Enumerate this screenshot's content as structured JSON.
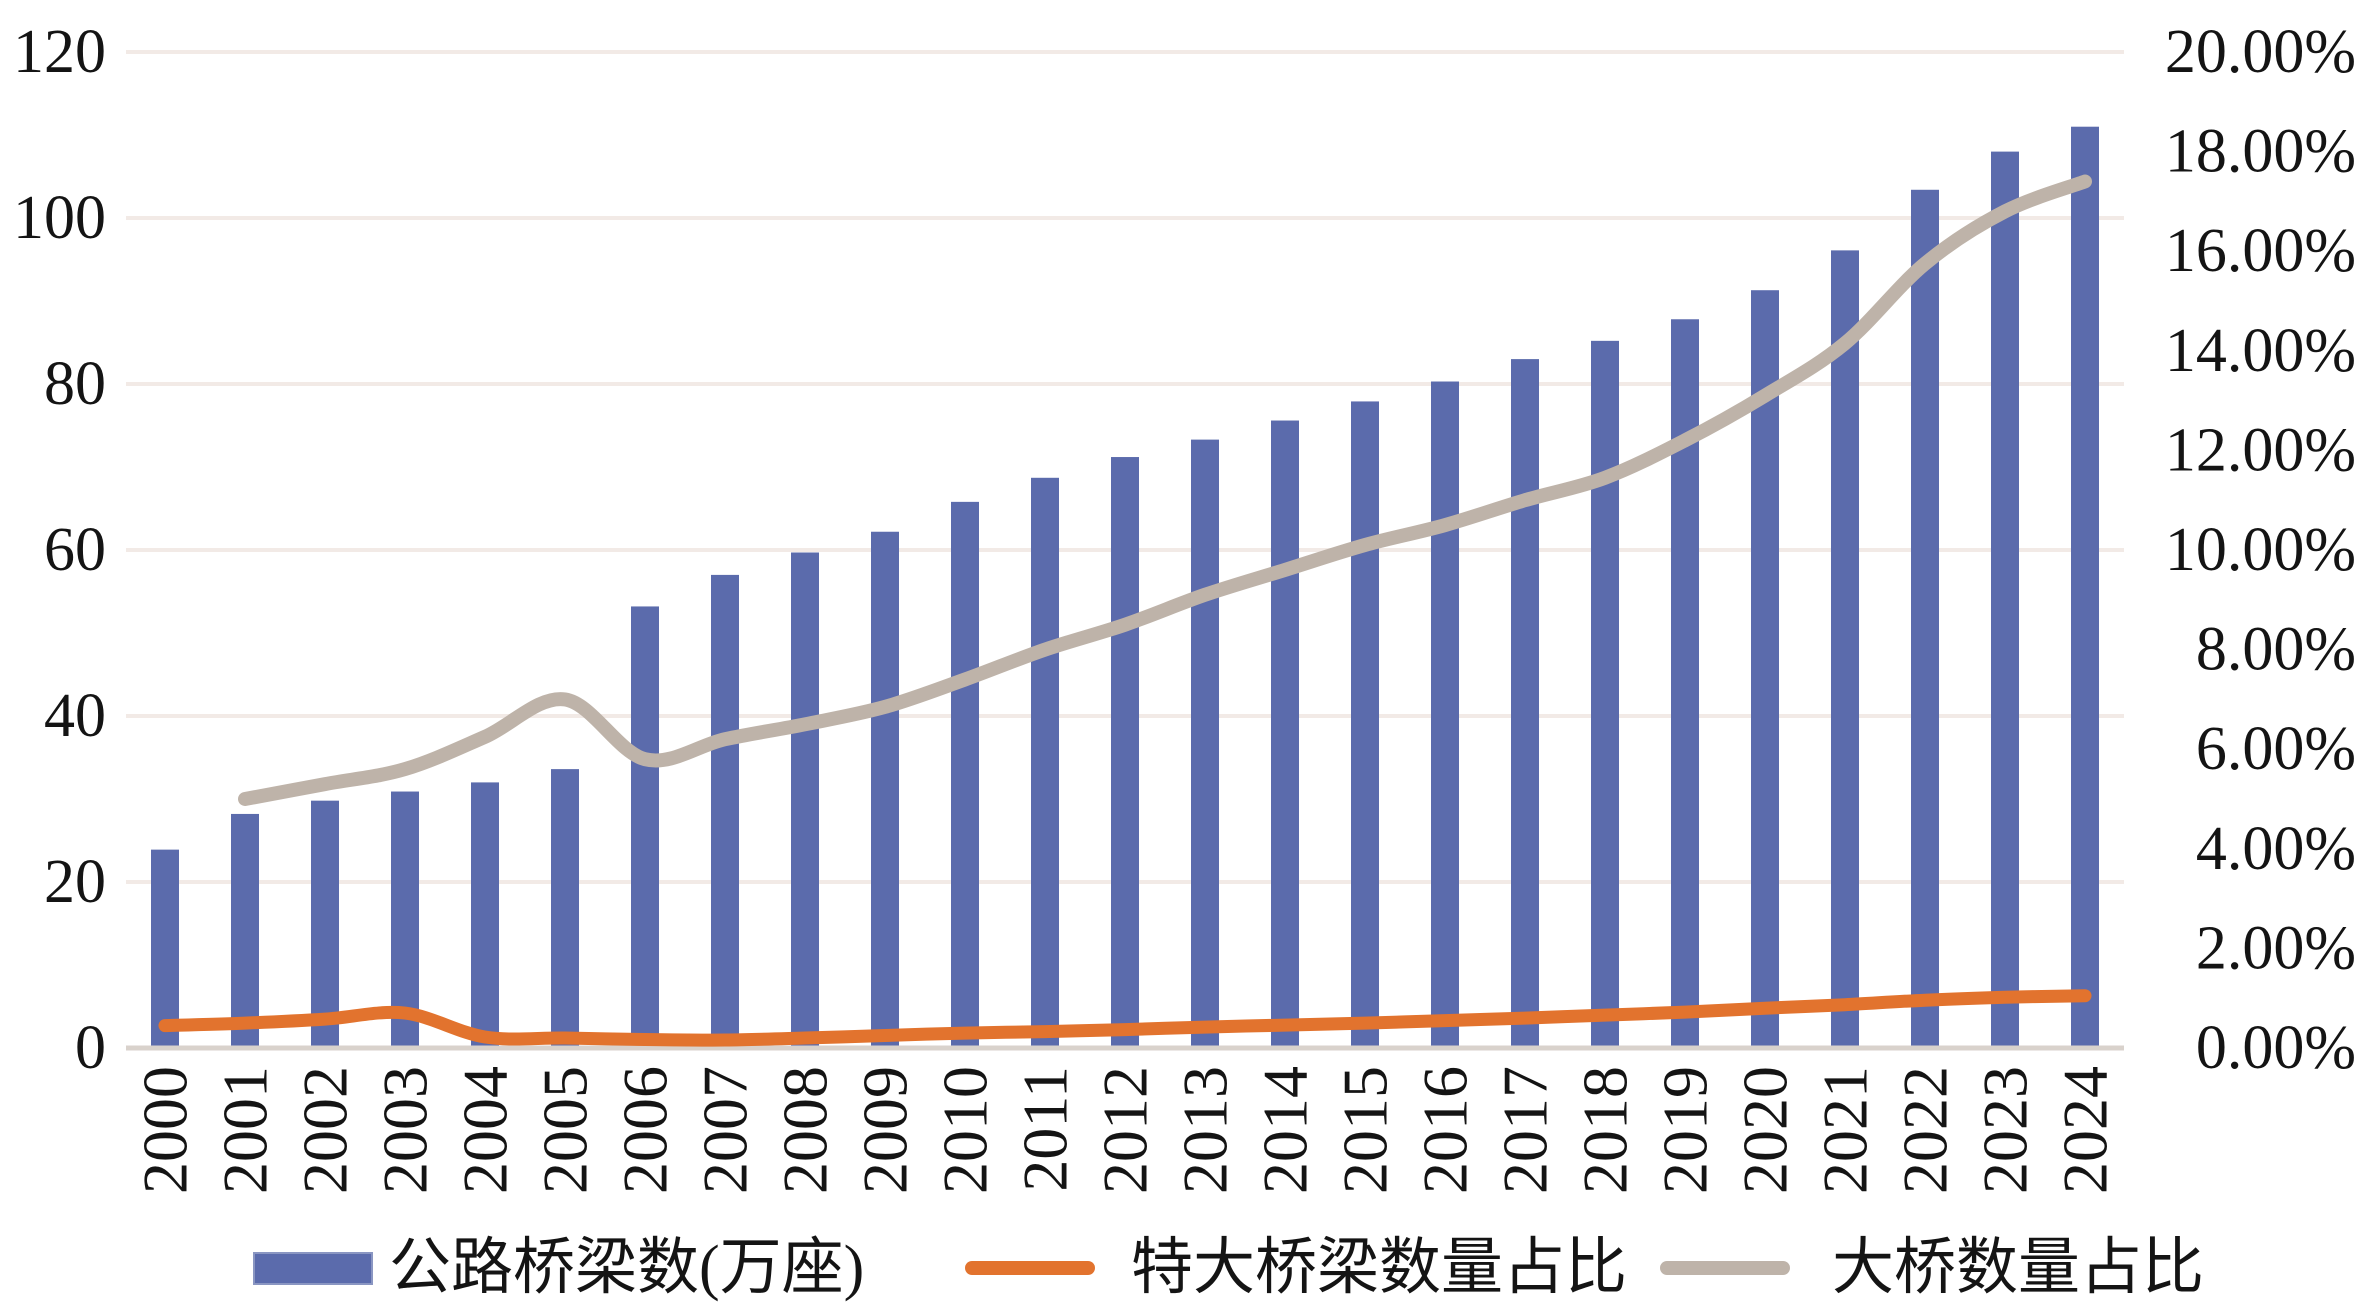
{
  "chart_data": {
    "type": "bar",
    "subtype": "combo-bar-line-dual-axis",
    "title": "",
    "categories": [
      "2000",
      "2001",
      "2002",
      "2003",
      "2004",
      "2005",
      "2006",
      "2007",
      "2008",
      "2009",
      "2010",
      "2011",
      "2012",
      "2013",
      "2014",
      "2015",
      "2016",
      "2017",
      "2018",
      "2019",
      "2020",
      "2021",
      "2022",
      "2023",
      "2024"
    ],
    "series": [
      {
        "name": "公路桥梁数(万座)",
        "type": "bar",
        "axis": "left",
        "color": "#5b6bac",
        "values": [
          23.9,
          28.2,
          29.8,
          30.9,
          32.0,
          33.6,
          53.2,
          57.0,
          59.7,
          62.2,
          65.8,
          68.7,
          71.2,
          73.3,
          75.6,
          77.9,
          80.3,
          83.0,
          85.2,
          87.8,
          91.3,
          96.1,
          103.4,
          108.0,
          111.0
        ]
      },
      {
        "name": "特大桥梁数量占比",
        "type": "line",
        "axis": "right",
        "color": "#e2732e",
        "values_pct": [
          0.45,
          0.5,
          0.58,
          0.7,
          0.22,
          0.2,
          0.17,
          0.16,
          0.2,
          0.25,
          0.3,
          0.33,
          0.37,
          0.42,
          0.46,
          0.5,
          0.55,
          0.6,
          0.66,
          0.72,
          0.8,
          0.87,
          0.96,
          1.02,
          1.05
        ]
      },
      {
        "name": "大桥数量占比",
        "type": "line",
        "axis": "right",
        "color": "#beb3a9",
        "values_pct": [
          null,
          5.0,
          5.3,
          5.6,
          6.25,
          7.0,
          5.8,
          6.2,
          6.5,
          6.85,
          7.4,
          8.0,
          8.5,
          9.1,
          9.6,
          10.1,
          10.5,
          11.0,
          11.45,
          12.2,
          13.1,
          14.15,
          15.75,
          16.8,
          17.4
        ]
      }
    ],
    "left_axis": {
      "min": 0,
      "max": 120,
      "step": 20,
      "tick_labels": [
        "120",
        "100",
        "80",
        "60",
        "40",
        "20",
        "0"
      ]
    },
    "right_axis": {
      "min_pct": 0,
      "max_pct": 20,
      "step_pct": 2,
      "tick_labels": [
        "20.00%",
        "18.00%",
        "16.00%",
        "14.00%",
        "12.00%",
        "10.00%",
        "8.00%",
        "6.00%",
        "4.00%",
        "2.00%",
        "0.00%"
      ]
    },
    "grid": true,
    "legend_position": "bottom"
  },
  "styles": {
    "background": "#ffffff",
    "gridline_color": "#f2eae6",
    "axis_line_color": "#d9d2cc",
    "text_color": "#141414",
    "bar_color": "#5b6bac",
    "extra_large_line_color": "#e2732e",
    "large_line_color": "#beb3a9"
  }
}
